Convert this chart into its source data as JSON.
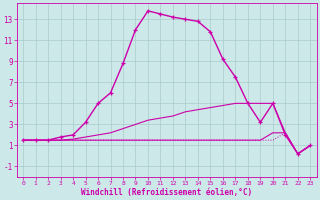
{
  "xlabel": "Windchill (Refroidissement éolien,°C)",
  "bg_color": "#cce8e8",
  "grid_color": "#aacccc",
  "line_color": "#cc00aa",
  "xlim": [
    -0.5,
    23.5
  ],
  "ylim": [
    -2,
    14.5
  ],
  "xticks": [
    0,
    1,
    2,
    3,
    4,
    5,
    6,
    7,
    8,
    9,
    10,
    11,
    12,
    13,
    14,
    15,
    16,
    17,
    18,
    19,
    20,
    21,
    22,
    23
  ],
  "yticks": [
    -1,
    1,
    3,
    5,
    7,
    9,
    11,
    13
  ],
  "line1_x": [
    0,
    1,
    2,
    3,
    4,
    5,
    6,
    7,
    8,
    9,
    10,
    11,
    12,
    13,
    14,
    15,
    16,
    17,
    18,
    19,
    20,
    21,
    22,
    23
  ],
  "line1_y": [
    1.5,
    1.5,
    1.5,
    1.8,
    2.0,
    3.2,
    5.0,
    6.0,
    8.8,
    12.0,
    13.8,
    13.5,
    13.2,
    13.0,
    12.8,
    11.8,
    9.2,
    7.5,
    5.0,
    3.2,
    5.0,
    2.0,
    0.2,
    1.0
  ],
  "line1_style": "-",
  "line1_marker": "+",
  "line2_x": [
    0,
    1,
    2,
    3,
    4,
    5,
    6,
    7,
    8,
    9,
    10,
    11,
    12,
    13,
    14,
    15,
    16,
    17,
    18,
    19,
    20,
    21,
    22,
    23
  ],
  "line2_y": [
    1.5,
    1.5,
    1.5,
    1.5,
    1.5,
    1.5,
    1.5,
    1.5,
    1.5,
    1.5,
    1.5,
    1.5,
    1.5,
    1.5,
    1.5,
    1.5,
    1.5,
    1.5,
    1.5,
    1.5,
    2.2,
    2.2,
    0.2,
    1.0
  ],
  "line2_style": "-",
  "line2_marker": "none",
  "line3_x": [
    0,
    1,
    2,
    3,
    4,
    5,
    6,
    7,
    8,
    9,
    10,
    11,
    12,
    13,
    14,
    15,
    16,
    17,
    18,
    19,
    20,
    21,
    22,
    23
  ],
  "line3_y": [
    1.5,
    1.5,
    1.5,
    1.5,
    1.6,
    1.8,
    2.0,
    2.2,
    2.6,
    3.0,
    3.4,
    3.6,
    3.8,
    4.2,
    4.4,
    4.6,
    4.8,
    5.0,
    5.0,
    5.0,
    5.0,
    2.2,
    0.2,
    1.0
  ],
  "line3_style": "-",
  "line3_marker": "none",
  "line4_x": [
    0,
    1,
    2,
    3,
    4,
    5,
    6,
    7,
    8,
    9,
    10,
    11,
    12,
    13,
    14,
    15,
    16,
    17,
    18,
    19,
    20,
    21,
    22,
    23
  ],
  "line4_y": [
    1.5,
    1.5,
    1.5,
    1.5,
    1.5,
    1.5,
    1.5,
    1.5,
    1.5,
    1.5,
    1.5,
    1.5,
    1.5,
    1.5,
    1.5,
    1.5,
    1.5,
    1.5,
    1.5,
    1.5,
    1.5,
    2.2,
    0.2,
    1.0
  ],
  "line4_style": "dotted",
  "line4_marker": "none"
}
